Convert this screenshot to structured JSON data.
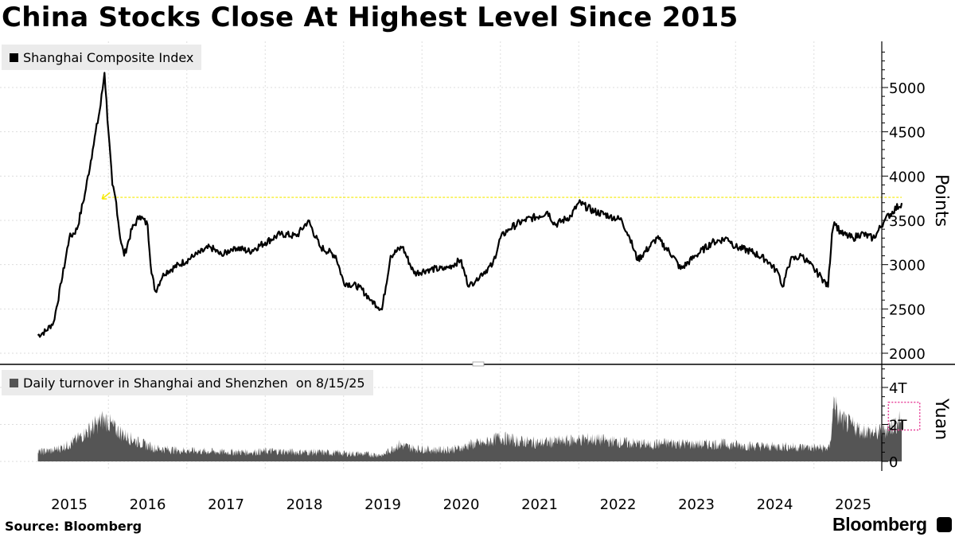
{
  "title": "China Stocks Close At Highest Level Since 2015",
  "source": "Source: Bloomberg",
  "brand": "Bloomberg",
  "colors": {
    "series": "#000000",
    "turnover": "#555555",
    "reference_line": "#f5e900",
    "highlight_box": "#e8429a",
    "legend_bg": "#ebebeb",
    "grid": "#dddddd"
  },
  "chart_data": [
    {
      "type": "line",
      "title": "China Stocks Close At Highest Level Since 2015",
      "legend": "Shanghai Composite Index",
      "ylabel": "Points",
      "ylim": [
        1950,
        5500
      ],
      "yticks": [
        2000,
        2500,
        3000,
        3500,
        4000,
        4500,
        5000
      ],
      "ytick_labels": [
        "2000",
        "2500",
        "3000",
        "3500",
        "4000",
        "4500",
        "5000"
      ],
      "reference_line": {
        "value": 3760,
        "from": 2015.5,
        "label": ""
      },
      "x_years": [
        2015,
        2016,
        2017,
        2018,
        2019,
        2020,
        2021,
        2022,
        2023,
        2024,
        2025
      ],
      "series": [
        {
          "name": "Shanghai Composite Index",
          "x": [
            2014.6,
            2014.7,
            2014.8,
            2014.9,
            2015.0,
            2015.1,
            2015.2,
            2015.3,
            2015.4,
            2015.45,
            2015.5,
            2015.55,
            2015.6,
            2015.65,
            2015.7,
            2015.8,
            2015.9,
            2016.0,
            2016.05,
            2016.1,
            2016.2,
            2016.4,
            2016.6,
            2016.8,
            2016.95,
            2017.1,
            2017.3,
            2017.5,
            2017.7,
            2017.9,
            2018.05,
            2018.2,
            2018.4,
            2018.5,
            2018.7,
            2018.85,
            2018.99,
            2019.1,
            2019.25,
            2019.4,
            2019.6,
            2019.8,
            2019.99,
            2020.1,
            2020.2,
            2020.4,
            2020.5,
            2020.6,
            2020.8,
            2021.0,
            2021.1,
            2021.2,
            2021.4,
            2021.5,
            2021.7,
            2021.9,
            2022.05,
            2022.15,
            2022.25,
            2022.4,
            2022.5,
            2022.7,
            2022.8,
            2022.99,
            2023.2,
            2023.4,
            2023.5,
            2023.7,
            2023.9,
            2024.05,
            2024.1,
            2024.2,
            2024.35,
            2024.5,
            2024.6,
            2024.68,
            2024.73,
            2024.76,
            2024.85,
            2025.0,
            2025.1,
            2025.25,
            2025.3,
            2025.4,
            2025.5,
            2025.62
          ],
          "values": [
            2200,
            2250,
            2350,
            2800,
            3300,
            3400,
            3800,
            4300,
            4800,
            5166,
            4500,
            3900,
            3700,
            3300,
            3100,
            3400,
            3550,
            3450,
            2900,
            2700,
            2900,
            3000,
            3100,
            3200,
            3100,
            3200,
            3150,
            3250,
            3350,
            3320,
            3500,
            3200,
            3100,
            2800,
            2750,
            2600,
            2494,
            3100,
            3200,
            2900,
            2950,
            2950,
            3050,
            2750,
            2850,
            3000,
            3300,
            3400,
            3500,
            3550,
            3600,
            3450,
            3550,
            3700,
            3600,
            3550,
            3500,
            3300,
            3050,
            3200,
            3300,
            3100,
            2950,
            3100,
            3250,
            3300,
            3200,
            3150,
            3050,
            2900,
            2750,
            3050,
            3100,
            2950,
            2850,
            2750,
            3350,
            3480,
            3350,
            3300,
            3350,
            3300,
            3350,
            3500,
            3600,
            3696
          ]
        }
      ]
    },
    {
      "type": "area",
      "legend": "Daily turnover in Shanghai and Shenzhen  on 8/15/25",
      "ylabel": "Yuan",
      "ylim": [
        0,
        5
      ],
      "yticks": [
        0,
        2,
        4
      ],
      "ytick_labels": [
        "0",
        "2T",
        "4T"
      ],
      "highlight": {
        "x_from": 2025.45,
        "x_to": 2025.85,
        "y_from": 1.7,
        "y_to": 3.2
      },
      "series": [
        {
          "name": "Daily turnover",
          "x": [
            2014.6,
            2014.8,
            2015.0,
            2015.2,
            2015.35,
            2015.45,
            2015.6,
            2015.75,
            2015.9,
            2016.1,
            2016.4,
            2016.7,
            2017.0,
            2017.3,
            2017.6,
            2017.9,
            2018.1,
            2018.4,
            2018.7,
            2019.0,
            2019.2,
            2019.4,
            2019.7,
            2020.0,
            2020.1,
            2020.3,
            2020.5,
            2020.7,
            2021.0,
            2021.3,
            2021.6,
            2021.9,
            2022.1,
            2022.4,
            2022.7,
            2023.0,
            2023.3,
            2023.6,
            2023.9,
            2024.1,
            2024.4,
            2024.7,
            2024.73,
            2024.76,
            2024.8,
            2024.9,
            2025.0,
            2025.1,
            2025.3,
            2025.5,
            2025.62
          ],
          "values": [
            0.5,
            0.6,
            0.9,
            1.5,
            2.0,
            2.3,
            1.7,
            1.3,
            1.0,
            0.7,
            0.6,
            0.55,
            0.5,
            0.5,
            0.55,
            0.5,
            0.5,
            0.45,
            0.4,
            0.35,
            0.9,
            0.7,
            0.6,
            0.7,
            0.9,
            1.0,
            1.3,
            1.1,
            1.0,
            1.1,
            1.2,
            1.1,
            1.0,
            0.9,
            1.0,
            0.9,
            0.95,
            0.85,
            0.8,
            0.8,
            0.75,
            0.7,
            2.0,
            3.4,
            2.5,
            2.1,
            1.9,
            1.7,
            1.5,
            1.9,
            2.3
          ]
        }
      ]
    }
  ]
}
